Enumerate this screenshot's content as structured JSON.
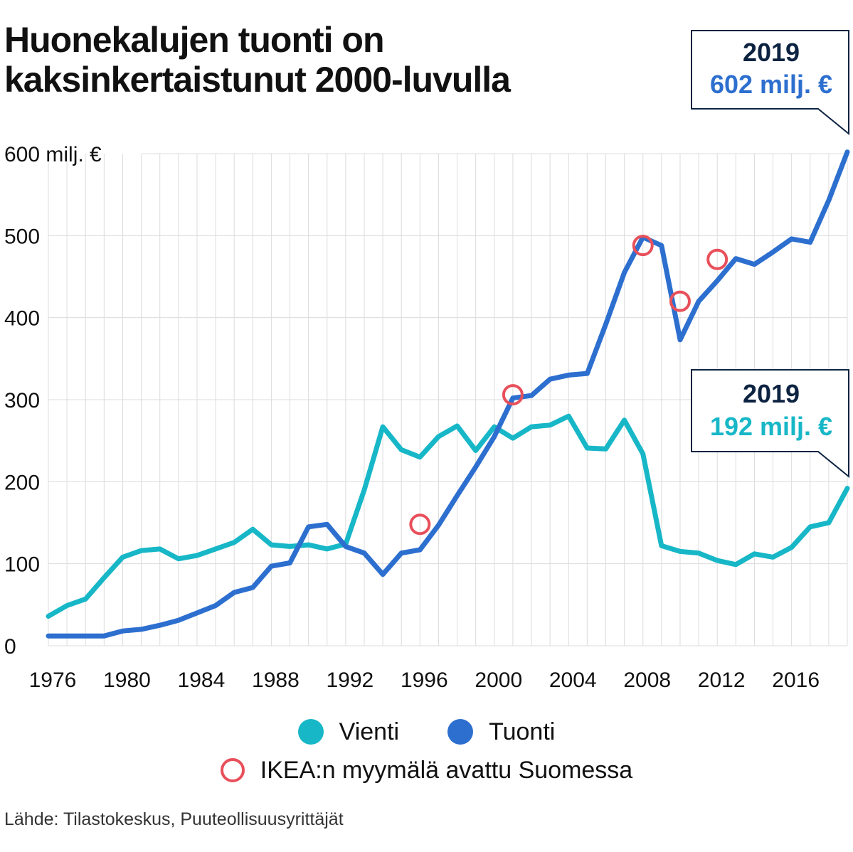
{
  "title_lines": [
    "Huonekalujen tuonti on",
    "kaksinkertaistunut 2000-luvulla"
  ],
  "source": "Lähde: Tilastokeskus, Puuteollisuusyrittäjät",
  "legend": {
    "vienti": "Vienti",
    "tuonti": "Tuonti",
    "ikea": "IKEA:n myymälä avattu Suomessa"
  },
  "callouts": {
    "tuonti": {
      "year": "2019",
      "value": "602 milj. €"
    },
    "vienti": {
      "year": "2019",
      "value": "192 milj. €"
    }
  },
  "colors": {
    "vienti": "#17b7c7",
    "tuonti": "#2d6fcf",
    "ikea": "#e8505b",
    "grid": "#dcdcdc"
  },
  "chart_data": {
    "type": "line",
    "title": "Huonekalujen tuonti on kaksinkertaistunut 2000-luvulla",
    "ylabel": "milj. €",
    "ylim": [
      0,
      600
    ],
    "xlim": [
      1976,
      2019
    ],
    "y_ticks": [
      0,
      100,
      200,
      300,
      400,
      500,
      600
    ],
    "y_tick_labels": [
      "0",
      "100",
      "200",
      "300",
      "400",
      "500",
      "600 milj. €"
    ],
    "x_ticks": [
      1976,
      1980,
      1984,
      1988,
      1992,
      1996,
      2000,
      2004,
      2008,
      2012,
      2016
    ],
    "x_tick_labels": [
      "1976",
      "1980",
      "1984",
      "1988",
      "1992",
      "1996",
      "2000",
      "2004",
      "2008",
      "2012",
      "2016"
    ],
    "x": [
      1976,
      1977,
      1978,
      1979,
      1980,
      1981,
      1982,
      1983,
      1984,
      1985,
      1986,
      1987,
      1988,
      1989,
      1990,
      1991,
      1992,
      1993,
      1994,
      1995,
      1996,
      1997,
      1998,
      1999,
      2000,
      2001,
      2002,
      2003,
      2004,
      2005,
      2006,
      2007,
      2008,
      2009,
      2010,
      2011,
      2012,
      2013,
      2014,
      2015,
      2016,
      2017,
      2018,
      2019
    ],
    "series": [
      {
        "name": "Vienti",
        "values": [
          36,
          49,
          57,
          83,
          108,
          116,
          118,
          106,
          110,
          118,
          126,
          142,
          123,
          121,
          123,
          118,
          124,
          190,
          267,
          239,
          230,
          255,
          268,
          238,
          267,
          253,
          267,
          269,
          280,
          241,
          240,
          275,
          234,
          122,
          115,
          113,
          104,
          99,
          112,
          108,
          120,
          145,
          150,
          192
        ]
      },
      {
        "name": "Tuonti",
        "values": [
          12,
          12,
          12,
          12,
          18,
          20,
          25,
          31,
          40,
          49,
          65,
          71,
          97,
          101,
          145,
          148,
          121,
          113,
          87,
          113,
          117,
          147,
          183,
          218,
          255,
          302,
          305,
          325,
          330,
          332,
          392,
          455,
          498,
          488,
          373,
          420,
          445,
          472,
          465,
          480,
          496,
          492,
          543,
          602
        ]
      }
    ],
    "ikea_markers": [
      {
        "year": 1996,
        "value": 148
      },
      {
        "year": 2001,
        "value": 306
      },
      {
        "year": 2008,
        "value": 488
      },
      {
        "year": 2010,
        "value": 420
      },
      {
        "year": 2012,
        "value": 471
      }
    ]
  }
}
